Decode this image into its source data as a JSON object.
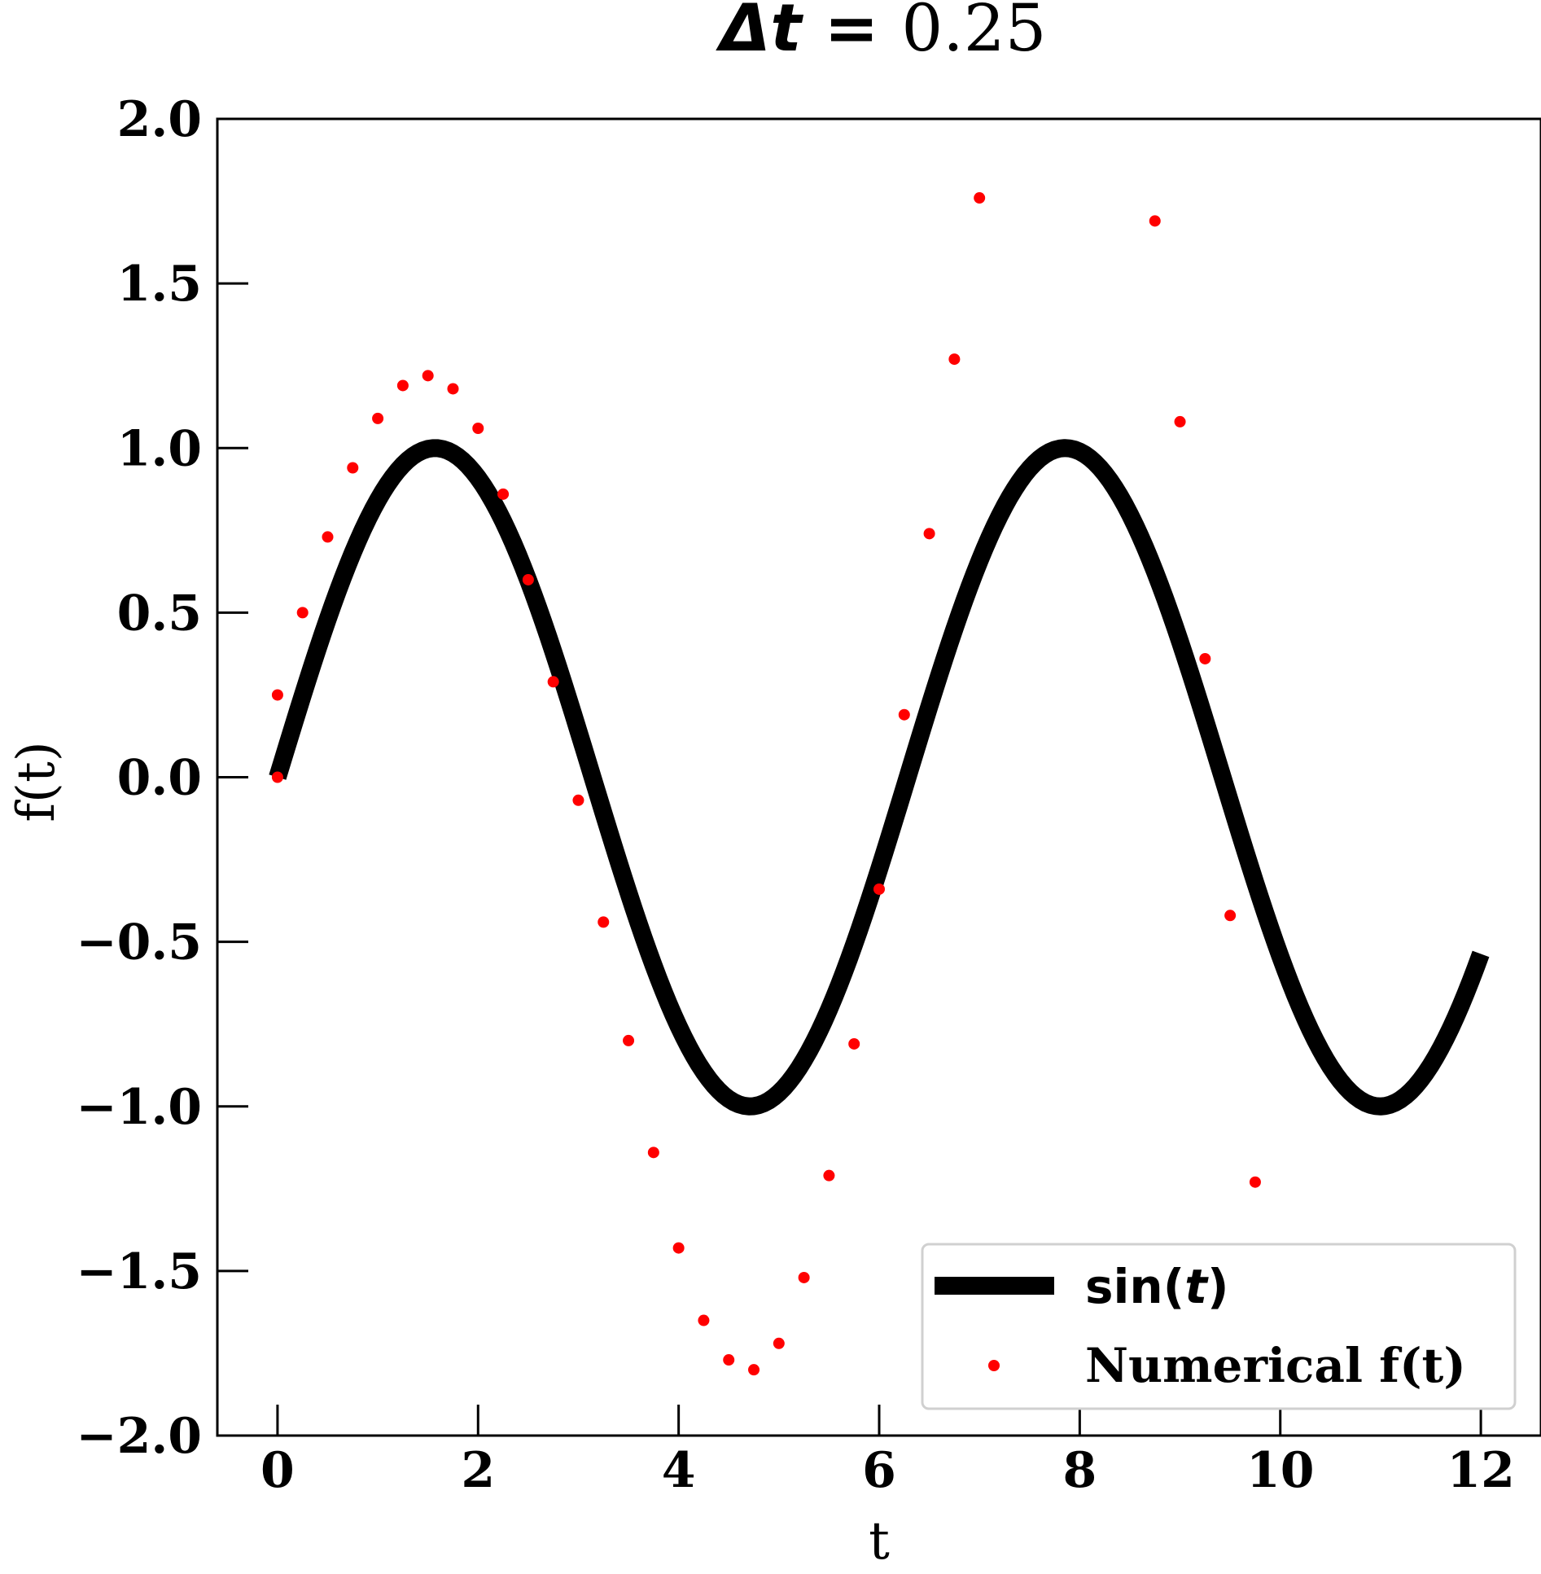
{
  "chart_data": {
    "type": "line",
    "title": {
      "prefix": "Δt",
      "equals": " = ",
      "value": "0.25"
    },
    "xlabel": "t",
    "ylabel": "f(t)",
    "xlim": [
      -0.6,
      12.6
    ],
    "ylim": [
      -2.0,
      2.0
    ],
    "x_ticks": [
      0,
      2,
      4,
      6,
      8,
      10,
      12
    ],
    "x_tick_labels": [
      "0",
      "2",
      "4",
      "6",
      "8",
      "10",
      "12"
    ],
    "y_ticks": [
      2.0,
      1.5,
      1.0,
      0.5,
      0.0,
      -0.5,
      -1.0,
      -1.5,
      -2.0
    ],
    "y_tick_labels": [
      "2.0",
      "1.5",
      "1.0",
      "0.5",
      "0.0",
      "−0.5",
      "−1.0",
      "−1.5",
      "−2.0"
    ],
    "grid": false,
    "legend_position": "lower-right",
    "series": [
      {
        "name": "sin(t)",
        "kind": "line",
        "color": "#000000",
        "x_start": 0,
        "x_end": 12,
        "x_step": 0.05,
        "function": "sin"
      },
      {
        "name": "Numerical f(t)",
        "kind": "scatter",
        "color": "#ff0000",
        "x": [
          0,
          0,
          0.25,
          0.5,
          0.75,
          1.0,
          1.25,
          1.5,
          1.75,
          2.0,
          2.25,
          2.5,
          2.75,
          3.0,
          3.25,
          3.5,
          3.75,
          4.0,
          4.25,
          4.5,
          4.75,
          5.0,
          5.25,
          5.5,
          5.75,
          6.0,
          6.25,
          6.5,
          6.75,
          7.0,
          8.75,
          9.0,
          9.25,
          9.5,
          9.75
        ],
        "y": [
          0.0,
          0.25,
          0.5,
          0.73,
          0.94,
          1.09,
          1.19,
          1.22,
          1.18,
          1.06,
          0.86,
          0.6,
          0.29,
          -0.07,
          -0.44,
          -0.8,
          -1.14,
          -1.43,
          -1.65,
          -1.77,
          -1.8,
          -1.72,
          -1.52,
          -1.21,
          -0.81,
          -0.34,
          0.19,
          0.74,
          1.27,
          1.76,
          1.69,
          1.08,
          0.36,
          -0.42,
          -1.23
        ]
      }
    ],
    "legend": {
      "line_label": {
        "func": "sin(",
        "var": "t",
        "close": ")"
      },
      "scatter_label": "Numerical f(t)"
    }
  }
}
